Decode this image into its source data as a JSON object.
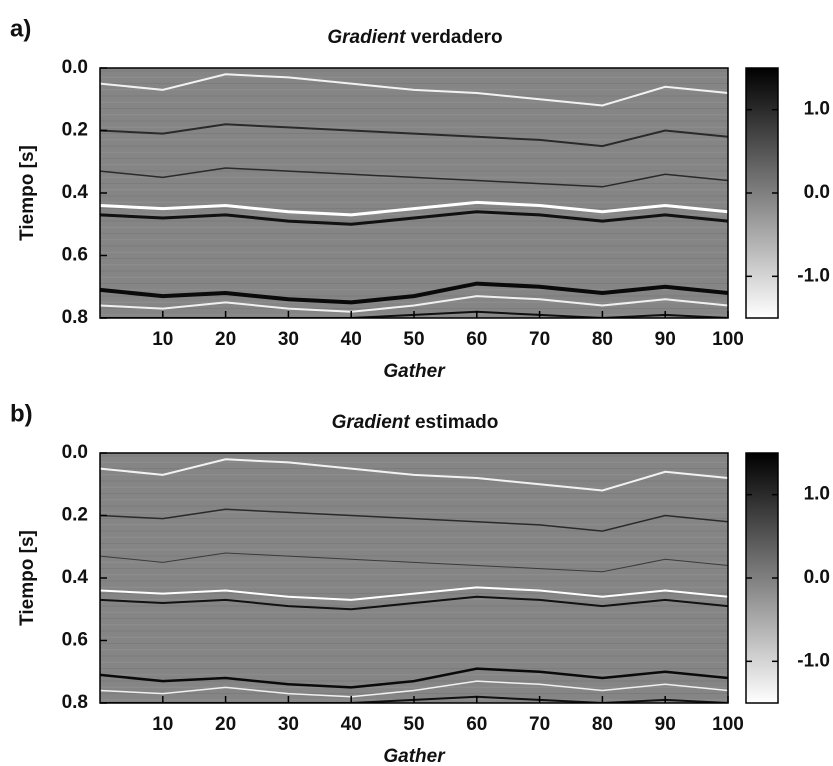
{
  "chart_data": [
    {
      "type": "heatmap",
      "panel_label": "a)",
      "title": {
        "italic": "Gradient",
        "text": "verdadero"
      },
      "x_label": "Gather",
      "y_label": "Tiempo [s]",
      "xlim": [
        0,
        100
      ],
      "xticks": [
        10,
        20,
        30,
        40,
        50,
        60,
        70,
        80,
        90,
        100
      ],
      "ylim": [
        0,
        0.8
      ],
      "y_inverted": true,
      "yticks": [
        {
          "value": 0,
          "label": "0.0"
        },
        0.2,
        0.4,
        0.6,
        0.8
      ],
      "background": "#858585",
      "colormap": [
        "#ffffff",
        "#000000"
      ],
      "clim": [
        -1.5,
        1.5
      ],
      "cticks": [
        {
          "value": 1,
          "label": "1.0"
        },
        {
          "value": 0,
          "label": "0.0"
        },
        {
          "value": -1,
          "label": "-1.0"
        }
      ],
      "x": [
        0,
        10,
        20,
        30,
        40,
        50,
        60,
        70,
        80,
        90,
        100
      ],
      "series": [
        {
          "color": "#f2f2f2",
          "width": 2,
          "values": [
            0.05,
            0.07,
            0.02,
            0.03,
            0.05,
            0.07,
            0.08,
            0.1,
            0.12,
            0.06,
            0.08
          ]
        },
        {
          "color": "#2a2a2a",
          "width": 2,
          "values": [
            0.2,
            0.21,
            0.18,
            0.19,
            0.2,
            0.21,
            0.22,
            0.23,
            0.25,
            0.2,
            0.22
          ]
        },
        {
          "color": "#2a2a2a",
          "width": 1.5,
          "values": [
            0.33,
            0.35,
            0.32,
            0.33,
            0.34,
            0.35,
            0.36,
            0.37,
            0.38,
            0.34,
            0.36
          ]
        },
        {
          "color": "#ffffff",
          "width": 3,
          "values": [
            0.44,
            0.45,
            0.44,
            0.46,
            0.47,
            0.45,
            0.43,
            0.44,
            0.46,
            0.44,
            0.46
          ]
        },
        {
          "color": "#111111",
          "width": 3,
          "values": [
            0.47,
            0.48,
            0.47,
            0.49,
            0.5,
            0.48,
            0.46,
            0.47,
            0.49,
            0.47,
            0.49
          ]
        },
        {
          "color": "#0a0a0a",
          "width": 4,
          "values": [
            0.71,
            0.73,
            0.72,
            0.74,
            0.75,
            0.73,
            0.69,
            0.7,
            0.72,
            0.7,
            0.72
          ]
        },
        {
          "color": "#f0f0f0",
          "width": 2,
          "values": [
            0.76,
            0.77,
            0.75,
            0.77,
            0.78,
            0.76,
            0.73,
            0.74,
            0.76,
            0.74,
            0.76
          ]
        },
        {
          "color": "#111111",
          "width": 2,
          "values": [
            0.8,
            0.8,
            0.8,
            0.8,
            0.8,
            0.79,
            0.78,
            0.79,
            0.8,
            0.79,
            0.8
          ]
        }
      ]
    },
    {
      "type": "heatmap",
      "panel_label": "b)",
      "title": {
        "italic": "Gradient",
        "text": "estimado"
      },
      "x_label": "Gather",
      "y_label": "Tiempo [s]",
      "xlim": [
        0,
        100
      ],
      "xticks": [
        10,
        20,
        30,
        40,
        50,
        60,
        70,
        80,
        90,
        100
      ],
      "ylim": [
        0,
        0.8
      ],
      "y_inverted": true,
      "yticks": [
        {
          "value": 0,
          "label": "0.0"
        },
        0.2,
        0.4,
        0.6,
        0.8
      ],
      "background": "#858585",
      "colormap": [
        "#ffffff",
        "#000000"
      ],
      "clim": [
        -1.5,
        1.5
      ],
      "cticks": [
        {
          "value": 1,
          "label": "1.0"
        },
        {
          "value": 0,
          "label": "0.0"
        },
        {
          "value": -1,
          "label": "-1.0"
        }
      ],
      "x": [
        0,
        10,
        20,
        30,
        40,
        50,
        60,
        70,
        80,
        90,
        100
      ],
      "series": [
        {
          "color": "#f2f2f2",
          "width": 2,
          "values": [
            0.05,
            0.07,
            0.02,
            0.03,
            0.05,
            0.07,
            0.08,
            0.1,
            0.12,
            0.06,
            0.08
          ]
        },
        {
          "color": "#2a2a2a",
          "width": 1.5,
          "values": [
            0.2,
            0.21,
            0.18,
            0.19,
            0.2,
            0.21,
            0.22,
            0.23,
            0.25,
            0.2,
            0.22
          ]
        },
        {
          "color": "#3a3a3a",
          "width": 1,
          "values": [
            0.33,
            0.35,
            0.32,
            0.33,
            0.34,
            0.35,
            0.36,
            0.37,
            0.38,
            0.34,
            0.36
          ]
        },
        {
          "color": "#ffffff",
          "width": 2,
          "values": [
            0.44,
            0.45,
            0.44,
            0.46,
            0.47,
            0.45,
            0.43,
            0.44,
            0.46,
            0.44,
            0.46
          ]
        },
        {
          "color": "#111111",
          "width": 2,
          "values": [
            0.47,
            0.48,
            0.47,
            0.49,
            0.5,
            0.48,
            0.46,
            0.47,
            0.49,
            0.47,
            0.49
          ]
        },
        {
          "color": "#0a0a0a",
          "width": 2.5,
          "values": [
            0.71,
            0.73,
            0.72,
            0.74,
            0.75,
            0.73,
            0.69,
            0.7,
            0.72,
            0.7,
            0.72
          ]
        },
        {
          "color": "#f0f0f0",
          "width": 1.5,
          "values": [
            0.76,
            0.77,
            0.75,
            0.77,
            0.78,
            0.76,
            0.73,
            0.74,
            0.76,
            0.74,
            0.76
          ]
        },
        {
          "color": "#111111",
          "width": 2,
          "values": [
            0.8,
            0.8,
            0.8,
            0.8,
            0.8,
            0.79,
            0.78,
            0.79,
            0.8,
            0.79,
            0.8
          ]
        }
      ]
    }
  ]
}
